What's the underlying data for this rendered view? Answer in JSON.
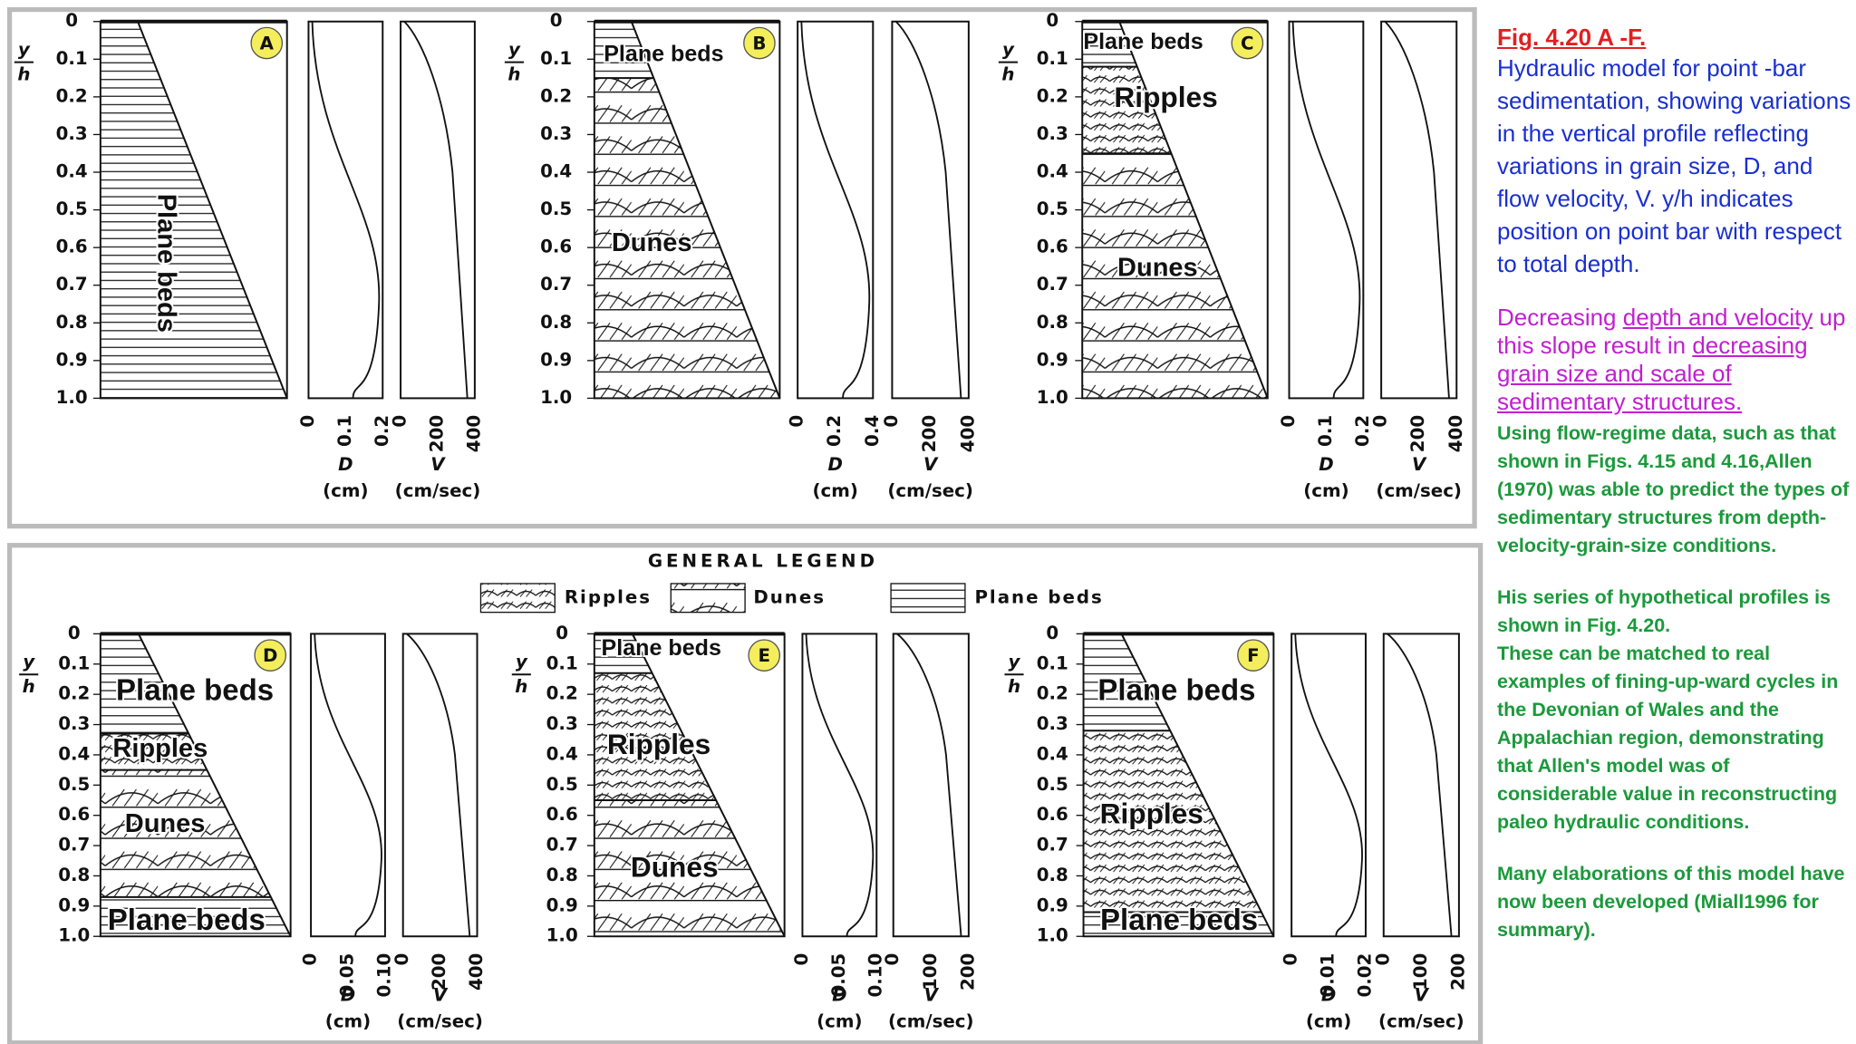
{
  "figure": {
    "panels": [
      {
        "letter": "A",
        "y_axis": {
          "numerator": "y",
          "denominator": "h",
          "ticks": [
            "0",
            "0.1",
            "0.2",
            "0.3",
            "0.4",
            "0.5",
            "0.6",
            "0.7",
            "0.8",
            "0.9",
            "1.0"
          ]
        },
        "d_axis": {
          "ticks": [
            "0",
            "0.1",
            "0.2"
          ],
          "symbol": "D",
          "unit": "(cm)"
        },
        "v_axis": {
          "ticks": [
            "0",
            "200",
            "400"
          ],
          "symbol": "V",
          "unit": "(cm/sec)"
        },
        "annotations": [
          "Plane beds"
        ]
      },
      {
        "letter": "B",
        "y_axis": {
          "numerator": "y",
          "denominator": "h",
          "ticks": [
            "0",
            "0.1",
            "0.2",
            "0.3",
            "0.4",
            "0.5",
            "0.6",
            "0.7",
            "0.8",
            "0.9",
            "1.0"
          ]
        },
        "d_axis": {
          "ticks": [
            "0",
            "0.2",
            "0.4"
          ],
          "symbol": "D",
          "unit": "(cm)"
        },
        "v_axis": {
          "ticks": [
            "0",
            "200",
            "400"
          ],
          "symbol": "V",
          "unit": "(cm/sec)"
        },
        "annotations": [
          "Plane beds",
          "Dunes"
        ]
      },
      {
        "letter": "C",
        "y_axis": {
          "numerator": "y",
          "denominator": "h",
          "ticks": [
            "0",
            "0.1",
            "0.2",
            "0.3",
            "0.4",
            "0.5",
            "0.6",
            "0.7",
            "0.8",
            "0.9",
            "1.0"
          ]
        },
        "d_axis": {
          "ticks": [
            "0",
            "0.1",
            "0.2"
          ],
          "symbol": "D",
          "unit": "(cm)"
        },
        "v_axis": {
          "ticks": [
            "0",
            "200",
            "400"
          ],
          "symbol": "V",
          "unit": "(cm/sec)"
        },
        "annotations": [
          "Plane beds",
          "Ripples",
          "Dunes"
        ]
      },
      {
        "letter": "D",
        "y_axis": {
          "numerator": "y",
          "denominator": "h",
          "ticks": [
            "0",
            "0.1",
            "0.2",
            "0.3",
            "0.4",
            "0.5",
            "0.6",
            "0.7",
            "0.8",
            "0.9",
            "1.0"
          ]
        },
        "d_axis": {
          "ticks": [
            "0",
            "0.05",
            "0.10"
          ],
          "symbol": "D",
          "unit": "(cm)"
        },
        "v_axis": {
          "ticks": [
            "0",
            "200",
            "400"
          ],
          "symbol": "V",
          "unit": "(cm/sec)"
        },
        "annotations": [
          "Plane beds",
          "Ripples",
          "Dunes",
          "Plane beds"
        ]
      },
      {
        "letter": "E",
        "y_axis": {
          "numerator": "y",
          "denominator": "h",
          "ticks": [
            "0",
            "0.1",
            "0.2",
            "0.3",
            "0.4",
            "0.5",
            "0.6",
            "0.7",
            "0.8",
            "0.9",
            "1.0"
          ]
        },
        "d_axis": {
          "ticks": [
            "0",
            "0.05",
            "0.10"
          ],
          "symbol": "D",
          "unit": "(cm)"
        },
        "v_axis": {
          "ticks": [
            "0",
            "100",
            "200"
          ],
          "symbol": "V",
          "unit": "(cm/sec)"
        },
        "annotations": [
          "Plane beds",
          "Ripples",
          "Dunes"
        ]
      },
      {
        "letter": "F",
        "y_axis": {
          "numerator": "y",
          "denominator": "h",
          "ticks": [
            "0",
            "0.1",
            "0.2",
            "0.3",
            "0.4",
            "0.5",
            "0.6",
            "0.7",
            "0.8",
            "0.9",
            "1.0"
          ]
        },
        "d_axis": {
          "ticks": [
            "0",
            "0.01",
            "0.02"
          ],
          "symbol": "D",
          "unit": "(cm)"
        },
        "v_axis": {
          "ticks": [
            "0",
            "100",
            "200"
          ],
          "symbol": "V",
          "unit": "(cm/sec)"
        },
        "annotations": [
          "Plane beds",
          "Ripples",
          "Plane beds"
        ]
      }
    ],
    "legend": {
      "title": "GENERAL LEGEND",
      "items": [
        "Ripples",
        "Dunes",
        "Plane beds"
      ]
    }
  },
  "caption": {
    "title": "Fig. 4.20 A -F.",
    "description": "Hydraulic model for point -bar sedimentation, showing variations in the vertical profile reflecting variations in grain size, D, and flow velocity, V. y/h indicates position on point bar with respect to total depth.",
    "emphasis": [
      "Decreasing ",
      "depth and velocity",
      " up this slope result in ",
      "decreasing grain size and scale of sedimentary structures."
    ],
    "paragraphs": [
      "Using flow-regime data, such as that shown in Figs. 4.15 and 4.16,Allen (1970) was able to predict the types of sedimentary structures from depth-velocity-grain-size conditions.",
      "His series of hypothetical profiles is shown in Fig. 4.20.",
      "These can be matched to real examples of fining-up-ward cycles in the Devonian of Wales and the Appalachian region, demonstrating that Allen's model was of considerable value in reconstructing paleo hydraulic conditions.",
      "Many elaborations of this model have now been developed (Miall1996 for summary)."
    ]
  }
}
